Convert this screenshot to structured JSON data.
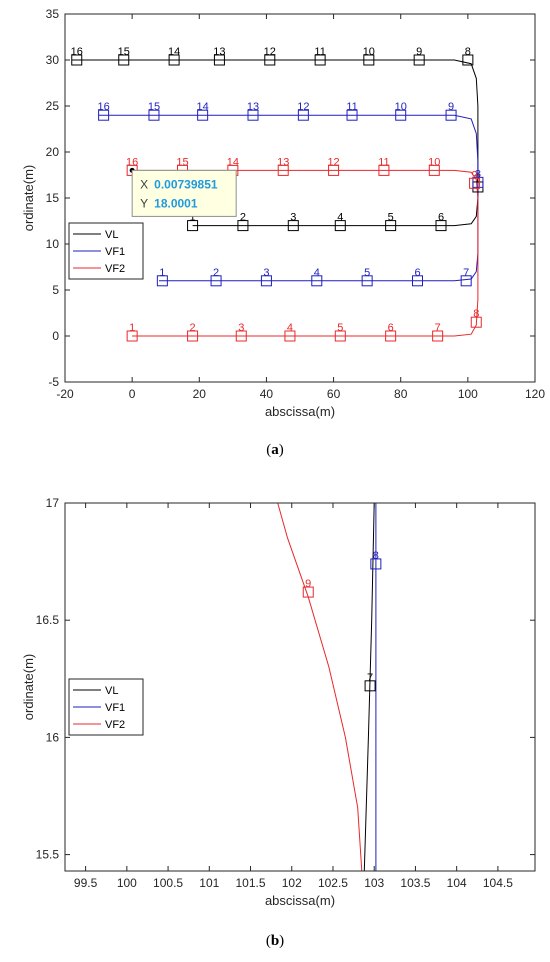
{
  "captions": {
    "a": "(a)",
    "b": "(b)",
    "a_letter": "a",
    "b_letter": "b"
  },
  "chart_data": [
    {
      "type": "line",
      "panel": "a",
      "xlabel": "abscissa(m)",
      "ylabel": "ordinate(m)",
      "xlim": [
        -20,
        120
      ],
      "ylim": [
        -5,
        35
      ],
      "xticks": [
        -20,
        0,
        20,
        40,
        60,
        80,
        100,
        120
      ],
      "yticks": [
        -5,
        0,
        5,
        10,
        15,
        20,
        25,
        30,
        35
      ],
      "grid": false,
      "legend": {
        "position": "middle-left",
        "entries": [
          "VL",
          "VF1",
          "VF2"
        ]
      },
      "series": [
        {
          "name": "VL",
          "color": "#000000",
          "path": [
            [
              -18,
              30
            ],
            [
              96,
              30
            ],
            [
              101,
              29.6
            ],
            [
              102.5,
              28
            ],
            [
              103,
              25
            ],
            [
              103,
              15
            ],
            [
              102.5,
              13
            ],
            [
              101,
              12.2
            ],
            [
              96,
              12
            ],
            [
              18,
              12
            ]
          ],
          "markers": [
            {
              "label": "16",
              "x": -16.5,
              "y": 30
            },
            {
              "label": "15",
              "x": -2.5,
              "y": 30
            },
            {
              "label": "14",
              "x": 12.5,
              "y": 30
            },
            {
              "label": "13",
              "x": 26,
              "y": 30
            },
            {
              "label": "12",
              "x": 41,
              "y": 30
            },
            {
              "label": "11",
              "x": 56,
              "y": 30
            },
            {
              "label": "10",
              "x": 70.5,
              "y": 30
            },
            {
              "label": "9",
              "x": 85.5,
              "y": 30
            },
            {
              "label": "8",
              "x": 100,
              "y": 30
            },
            {
              "label": "1",
              "x": 18,
              "y": 12
            },
            {
              "label": "2",
              "x": 33,
              "y": 12
            },
            {
              "label": "3",
              "x": 48,
              "y": 12
            },
            {
              "label": "4",
              "x": 62,
              "y": 12
            },
            {
              "label": "5",
              "x": 77,
              "y": 12
            },
            {
              "label": "6",
              "x": 92,
              "y": 12
            },
            {
              "label": "7",
              "x": 103,
              "y": 16.2
            }
          ]
        },
        {
          "name": "VF1",
          "color": "#1f1fbf",
          "path": [
            [
              -10,
              24
            ],
            [
              96,
              24
            ],
            [
              101,
              23.6
            ],
            [
              102.5,
              22
            ],
            [
              103,
              19
            ],
            [
              103,
              9
            ],
            [
              102.5,
              7
            ],
            [
              101,
              6.2
            ],
            [
              96,
              6
            ],
            [
              8,
              6
            ]
          ],
          "markers": [
            {
              "label": "16",
              "x": -8.5,
              "y": 24
            },
            {
              "label": "15",
              "x": 6.5,
              "y": 24
            },
            {
              "label": "14",
              "x": 21,
              "y": 24
            },
            {
              "label": "13",
              "x": 36,
              "y": 24
            },
            {
              "label": "12",
              "x": 51,
              "y": 24
            },
            {
              "label": "11",
              "x": 65.5,
              "y": 24
            },
            {
              "label": "10",
              "x": 80,
              "y": 24
            },
            {
              "label": "9",
              "x": 95,
              "y": 24
            },
            {
              "label": "8",
              "x": 103,
              "y": 16.7
            },
            {
              "label": "1",
              "x": 9,
              "y": 6
            },
            {
              "label": "2",
              "x": 25,
              "y": 6
            },
            {
              "label": "3",
              "x": 40,
              "y": 6
            },
            {
              "label": "4",
              "x": 55,
              "y": 6
            },
            {
              "label": "5",
              "x": 70,
              "y": 6
            },
            {
              "label": "6",
              "x": 85,
              "y": 6
            },
            {
              "label": "7",
              "x": 99.5,
              "y": 6
            }
          ]
        },
        {
          "name": "VF2",
          "color": "#e8282a",
          "path": [
            [
              0,
              18
            ],
            [
              96,
              18
            ],
            [
              101,
              17.8
            ],
            [
              102.5,
              17
            ],
            [
              103,
              15
            ],
            [
              103,
              4
            ],
            [
              102.5,
              1.2
            ],
            [
              101,
              0.2
            ],
            [
              96,
              0
            ],
            [
              0,
              0
            ]
          ],
          "markers": [
            {
              "label": "16",
              "x": 0,
              "y": 18
            },
            {
              "label": "15",
              "x": 15,
              "y": 18
            },
            {
              "label": "14",
              "x": 30,
              "y": 18
            },
            {
              "label": "13",
              "x": 45,
              "y": 18
            },
            {
              "label": "12",
              "x": 60,
              "y": 18
            },
            {
              "label": "11",
              "x": 75,
              "y": 18
            },
            {
              "label": "10",
              "x": 90,
              "y": 18
            },
            {
              "label": "9",
              "x": 102,
              "y": 16.6
            },
            {
              "label": "1",
              "x": 0,
              "y": 0
            },
            {
              "label": "2",
              "x": 18,
              "y": 0
            },
            {
              "label": "3",
              "x": 32.5,
              "y": 0
            },
            {
              "label": "4",
              "x": 47,
              "y": 0
            },
            {
              "label": "5",
              "x": 62,
              "y": 0
            },
            {
              "label": "6",
              "x": 77,
              "y": 0
            },
            {
              "label": "7",
              "x": 91,
              "y": 0
            },
            {
              "label": "8",
              "x": 102.5,
              "y": 1.5
            }
          ]
        }
      ],
      "datatip": {
        "x_label": "X",
        "x_value": "0.00739851",
        "y_label": "Y",
        "y_value": "18.0001",
        "point_x": 0.00739851,
        "point_y": 18.0001
      }
    },
    {
      "type": "line",
      "panel": "b",
      "xlabel": "abscissa(m)",
      "ylabel": "ordinate(m)",
      "xlim": [
        99.25,
        104.95
      ],
      "ylim": [
        15.43,
        17
      ],
      "xticks": [
        99.5,
        100,
        100.5,
        101,
        101.5,
        102,
        102.5,
        103,
        103.5,
        104,
        104.5
      ],
      "yticks": [
        15.5,
        16,
        16.5,
        17
      ],
      "grid": false,
      "legend": {
        "position": "middle-left",
        "entries": [
          "VL",
          "VF1",
          "VF2"
        ]
      },
      "series": [
        {
          "name": "VL",
          "color": "#000000",
          "path": [
            [
              102.88,
              15.43
            ],
            [
              102.93,
              16
            ],
            [
              102.97,
              16.5
            ],
            [
              103,
              17
            ]
          ],
          "markers": [
            {
              "label": "7",
              "x": 102.95,
              "y": 16.22
            }
          ]
        },
        {
          "name": "VF1",
          "color": "#1f1fbf",
          "path": [
            [
              103.02,
              15.43
            ],
            [
              103.02,
              16.5
            ],
            [
              103.02,
              17
            ]
          ],
          "markers": [
            {
              "label": "8",
              "x": 103.02,
              "y": 16.74
            }
          ]
        },
        {
          "name": "VF2",
          "color": "#e8282a",
          "path": [
            [
              101.83,
              17
            ],
            [
              101.95,
              16.85
            ],
            [
              102.2,
              16.6
            ],
            [
              102.45,
              16.3
            ],
            [
              102.65,
              16
            ],
            [
              102.8,
              15.7
            ],
            [
              102.85,
              15.43
            ]
          ],
          "markers": [
            {
              "label": "9",
              "x": 102.2,
              "y": 16.62
            }
          ]
        }
      ]
    }
  ]
}
